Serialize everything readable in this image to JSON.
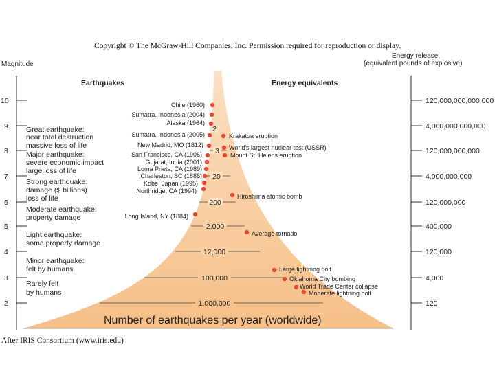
{
  "copyright": "Copyright © The McGraw-Hill Companies, Inc. Permission required for reproduction or display.",
  "credit": "After IRIS Consortium (www.iris.edu)",
  "axis_left_title": "Magnitude",
  "axis_right_title_line1": "Energy release",
  "axis_right_title_line2": "(equivalent pounds of explosive)",
  "header_left": "Earthquakes",
  "header_right": "Energy equivalents",
  "bottom_label": "Number of earthquakes per year (worldwide)",
  "magnitudes": [
    "10",
    "9",
    "8",
    "7",
    "6",
    "5",
    "4",
    "3",
    "2"
  ],
  "energy_values": [
    "120,000,000,000,000",
    "4,000,000,000,000",
    "120,000,000,000",
    "4,000,000,000",
    "120,000,000",
    "400,000",
    "120,000",
    "4,000",
    "120"
  ],
  "counts_per_year": [
    "2",
    "3",
    "20",
    "200",
    "2,000",
    "12,000",
    "100,000",
    "1,000,000"
  ],
  "descriptions": [
    {
      "line1": "Great earthquake:",
      "line2": "near total destruction",
      "line3": "massive loss of life"
    },
    {
      "line1": "Major earthquake:",
      "line2": "severe economic impact",
      "line3": "large loss of life"
    },
    {
      "line1": "Strong earthquake:",
      "line2": "damage ($ billions)",
      "line3": "loss of life"
    },
    {
      "line1": "Moderate earthquake:",
      "line2": "property damage"
    },
    {
      "line1": "Light earthquake:",
      "line2": "some property damage"
    },
    {
      "line1": "Minor earthquake:",
      "line2": "felt by humans"
    },
    {
      "line1": "Rarely felt",
      "line2": "by humans"
    }
  ],
  "earthquakes": [
    "Chile (1960)",
    "Sumatra, Indonesia (2004)",
    "Alaska (1964)",
    "Sumatra, Indonesia (2005)",
    "New Madrid, MO (1812)",
    "San Francisco, CA (1906)",
    "Gujarat, India (2001)",
    "Loma Prieta, CA (1989)",
    "Charleston, SC (1886)",
    "Kobe, Japan (1995)",
    "Northridge, CA (1994)",
    "Long Island, NY (1884)"
  ],
  "energy_events": [
    "Krakatoa eruption",
    "World's largest nuclear test (USSR)",
    "Mount St. Helens eruption",
    "Hiroshima atomic bomb",
    "Average tornado",
    "Large lightning bolt",
    "Oklahoma City bombing",
    "World Trade Center collapse",
    "Moderate lightning bolt"
  ],
  "colors": {
    "fill": "#f7c593",
    "fill_light": "#fbe0c2",
    "dot": "#e8472b",
    "line": "#333333"
  }
}
